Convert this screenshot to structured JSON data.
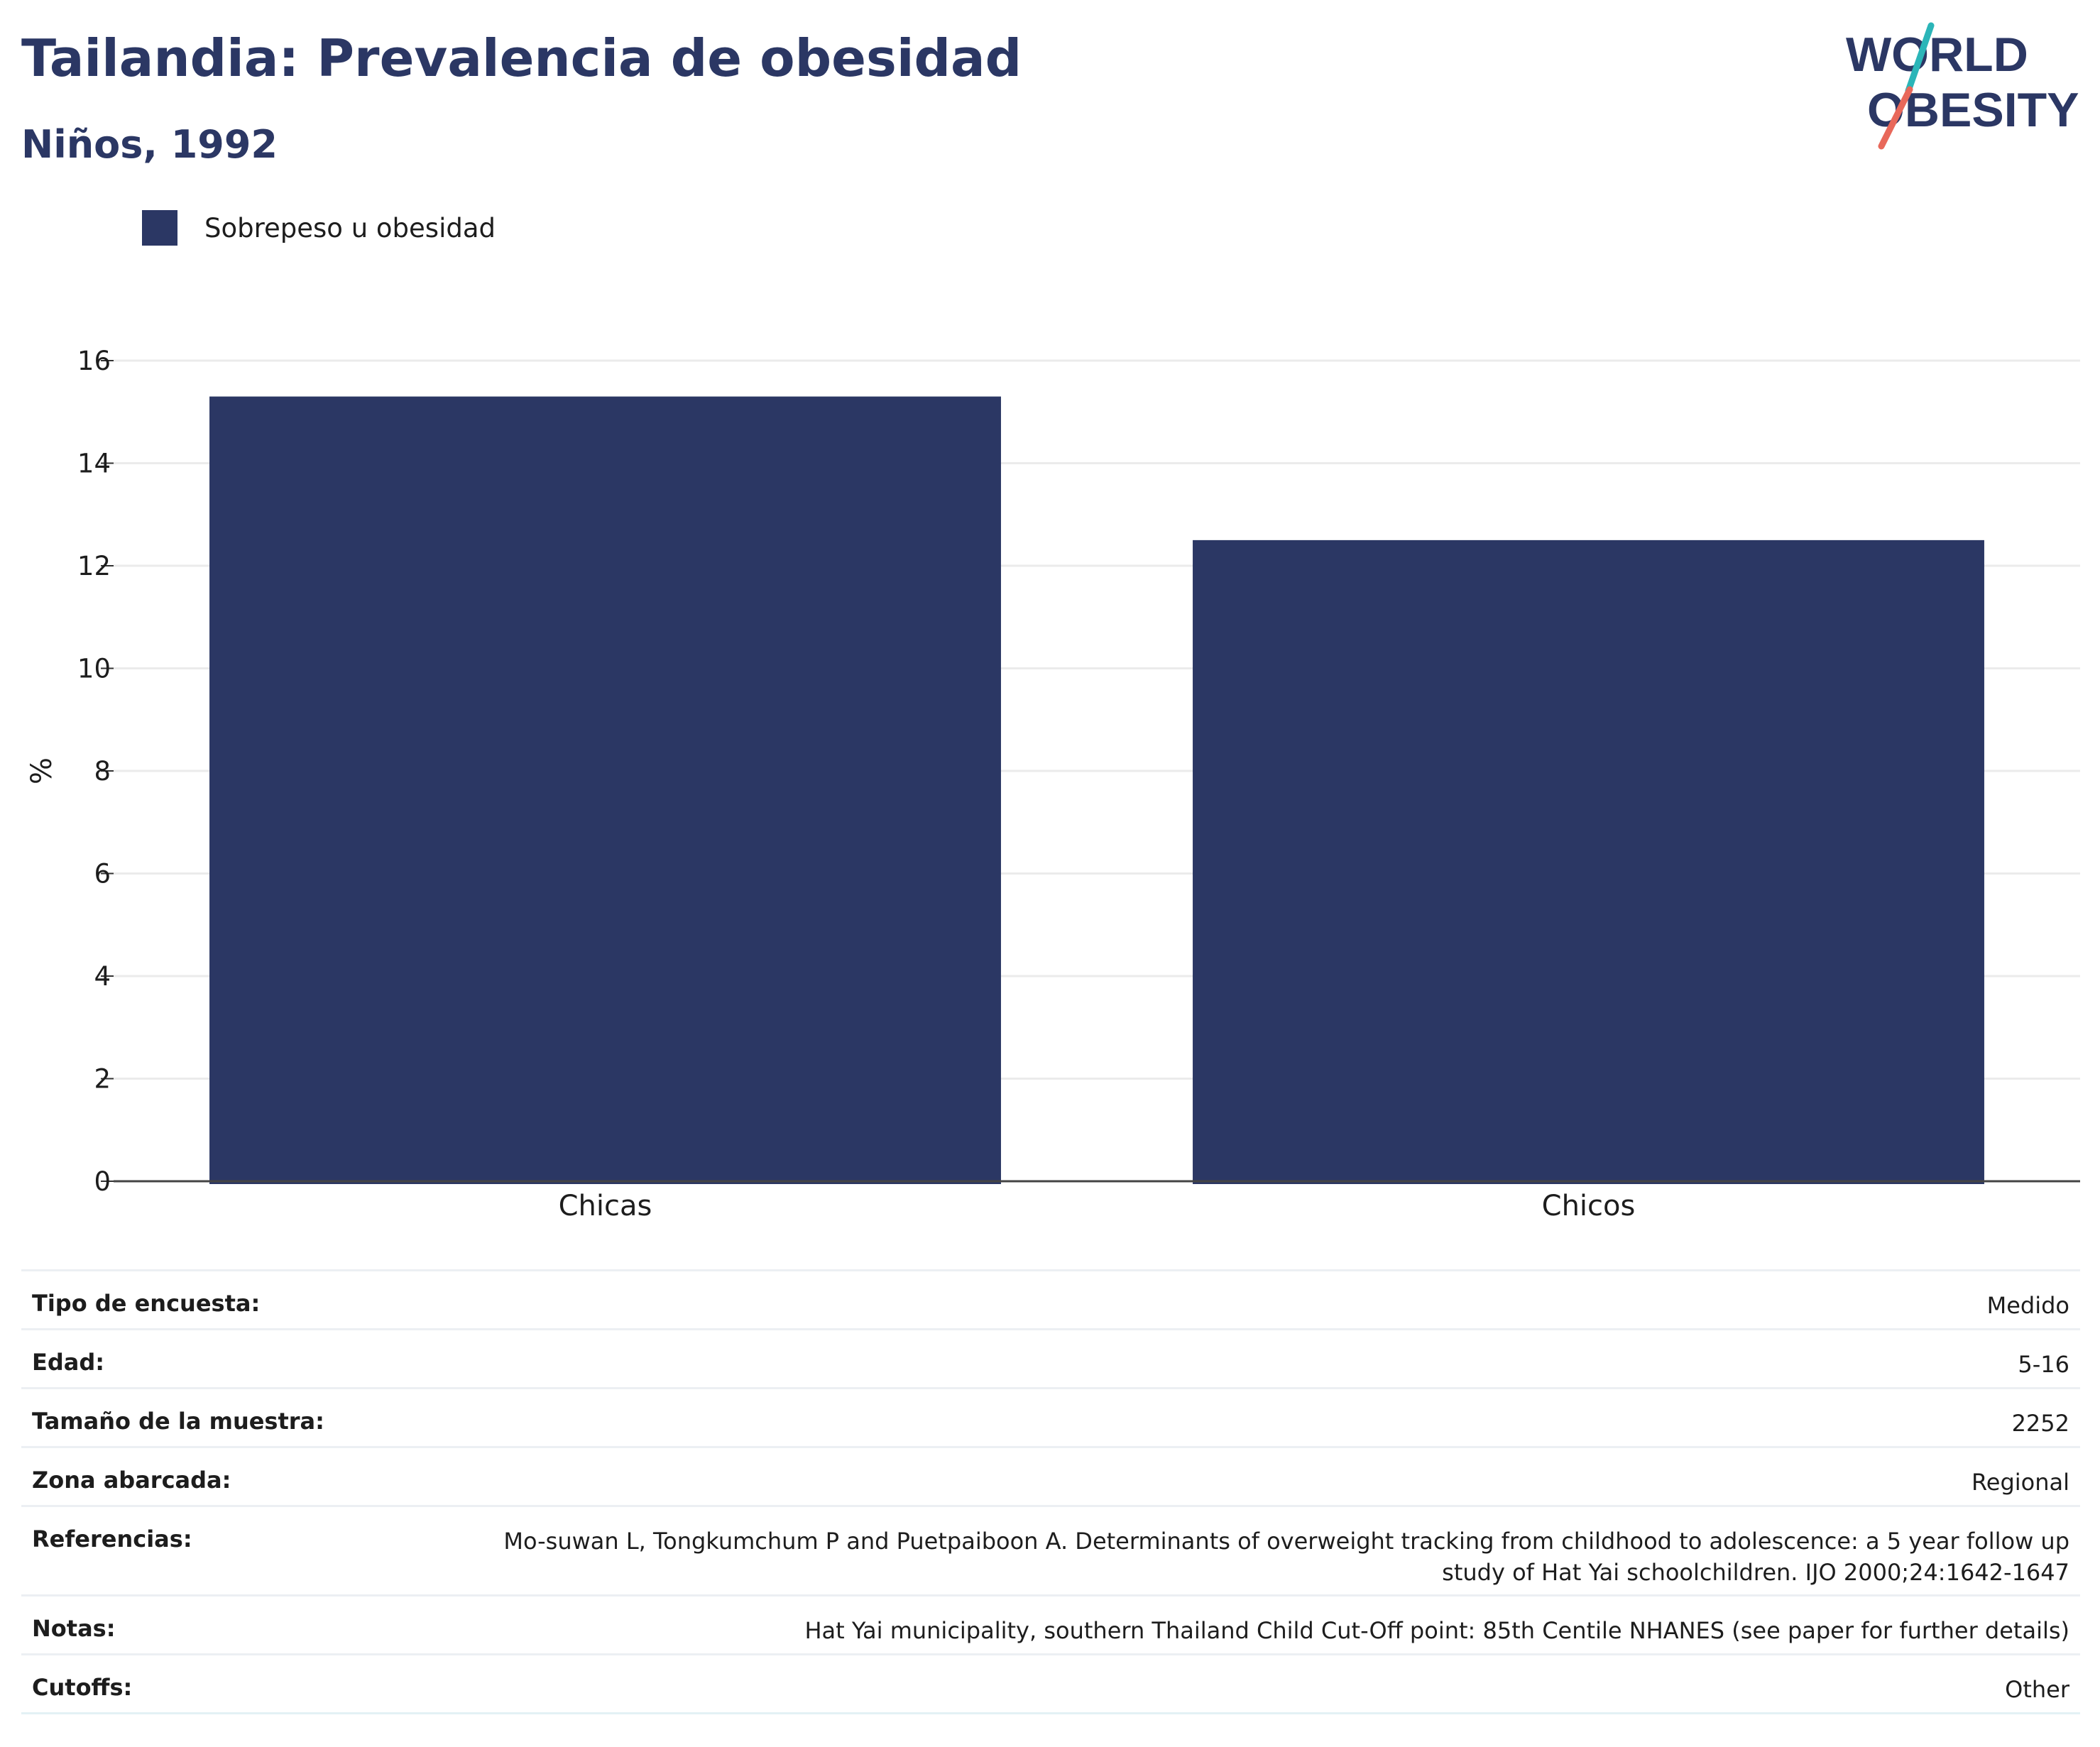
{
  "header": {
    "title": "Tailandia: Prevalencia de obesidad",
    "subtitle": "Niños, 1992"
  },
  "logo": {
    "line1": "WORLD",
    "line2": "OBESITY",
    "colors": {
      "text": "#2b3764",
      "slash_top": "#2bb5b8",
      "slash_bottom": "#e8685a"
    }
  },
  "legend": [
    {
      "label": "Sobrepeso u obesidad",
      "color": "#2b3764"
    }
  ],
  "chart_data": {
    "type": "bar",
    "categories": [
      "Chicas",
      "Chicos"
    ],
    "series": [
      {
        "name": "Sobrepeso u obesidad",
        "values": [
          15.3,
          12.5
        ],
        "color": "#2b3764"
      }
    ],
    "ylabel": "%",
    "ylim": [
      0,
      16
    ],
    "yticks": [
      0,
      2,
      4,
      6,
      8,
      10,
      12,
      14,
      16
    ],
    "grid": true,
    "legend_position": "top-left"
  },
  "meta": {
    "rows": [
      {
        "key": "Tipo de encuesta:",
        "value": "Medido"
      },
      {
        "key": "Edad:",
        "value": "5-16"
      },
      {
        "key": "Tamaño de la muestra:",
        "value": "2252"
      },
      {
        "key": "Zona abarcada:",
        "value": "Regional"
      },
      {
        "key": "Referencias:",
        "value": "Mo-suwan L, Tongkumchum P and Puetpaiboon A. Determinants of overweight tracking from childhood to adolescence: a 5 year follow up study of Hat Yai schoolchildren. IJO 2000;24:1642-1647"
      },
      {
        "key": "Notas:",
        "value": "Hat Yai municipality, southern Thailand Child Cut-Off point: 85th Centile NHANES (see paper for further details)"
      },
      {
        "key": "Cutoffs:",
        "value": "Other"
      }
    ]
  }
}
